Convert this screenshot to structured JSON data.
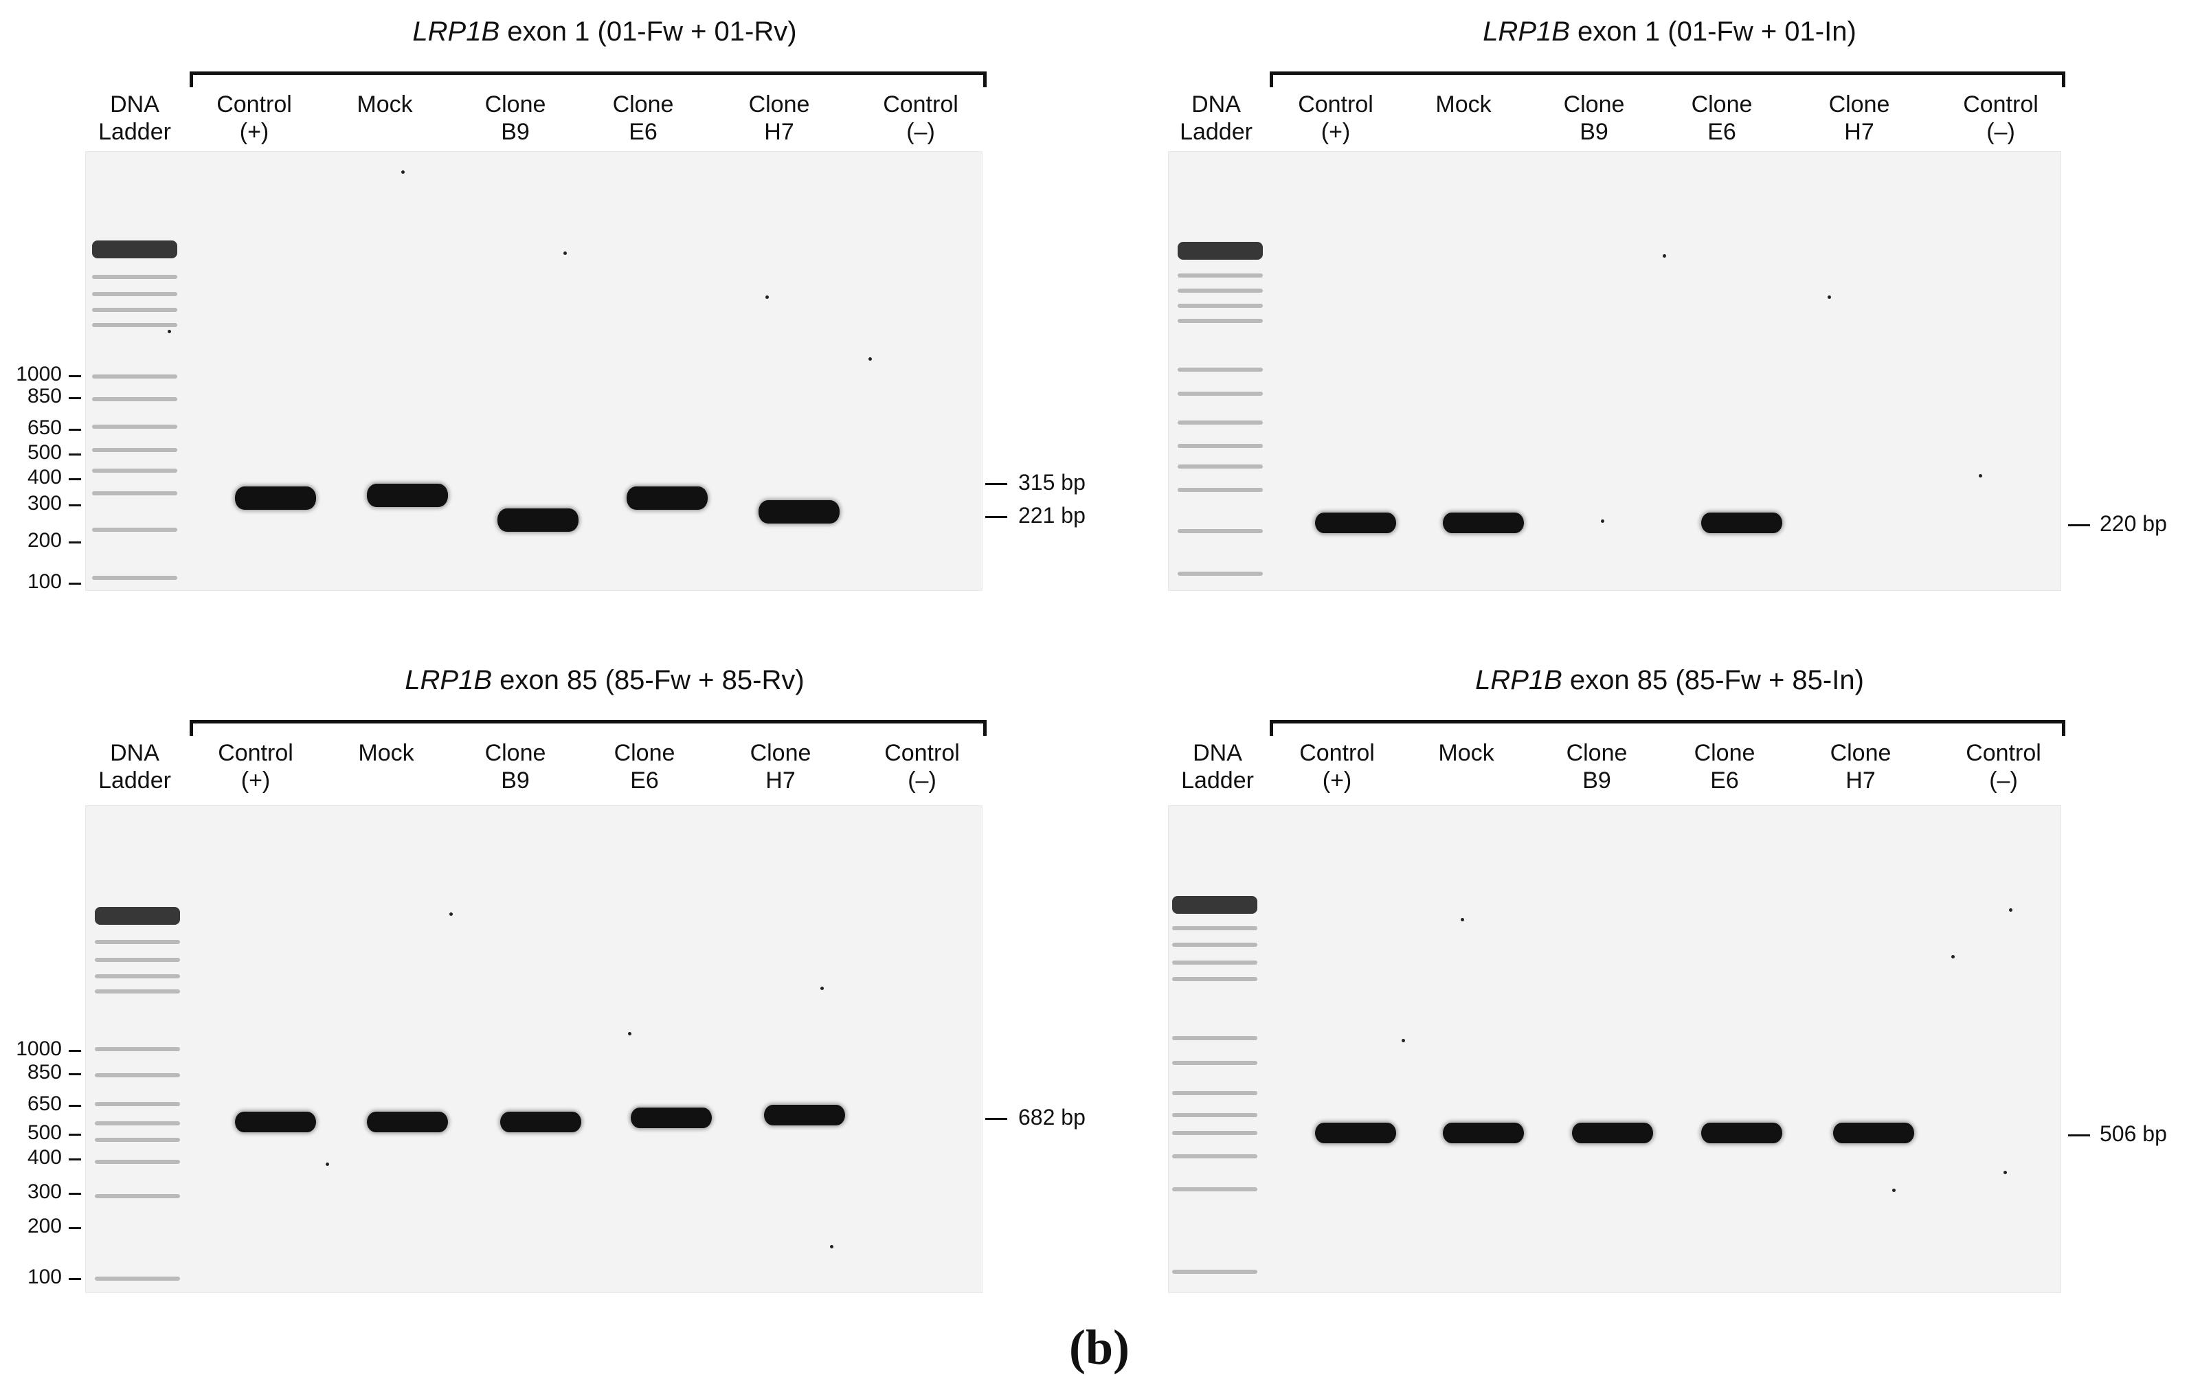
{
  "figure_caption": "(b)",
  "scale_marks": [
    "1000",
    "850",
    "650",
    "500",
    "400",
    "300",
    "200",
    "100"
  ],
  "lane_labels": [
    "DNA\nLadder",
    "Control\n(+)",
    "Mock",
    "Clone\nB9",
    "Clone\nE6",
    "Clone\nH7",
    "Control\n(–)"
  ],
  "panels": [
    {
      "title_gene": "LRP1B",
      "title_rest": " exon 1 (01-Fw + 01-Rv)",
      "size_labels": [
        "315 bp",
        "221 bp"
      ],
      "bands_present": [
        true,
        true,
        true,
        true,
        true,
        false
      ]
    },
    {
      "title_gene": "LRP1B",
      "title_rest": " exon 1 (01-Fw + 01-In)",
      "size_labels": [
        "220 bp"
      ],
      "bands_present": [
        true,
        true,
        false,
        true,
        false,
        false
      ]
    },
    {
      "title_gene": "LRP1B",
      "title_rest": " exon 85 (85-Fw + 85-Rv)",
      "size_labels": [
        "682 bp"
      ],
      "bands_present": [
        true,
        true,
        true,
        true,
        true,
        false
      ]
    },
    {
      "title_gene": "LRP1B",
      "title_rest": " exon 85 (85-Fw + 85-In)",
      "size_labels": [
        "506 bp"
      ],
      "bands_present": [
        true,
        true,
        true,
        true,
        true,
        false
      ]
    }
  ],
  "colors": {
    "gel_background": "#f3f3f3",
    "band": "#111111",
    "text": "#111111"
  }
}
